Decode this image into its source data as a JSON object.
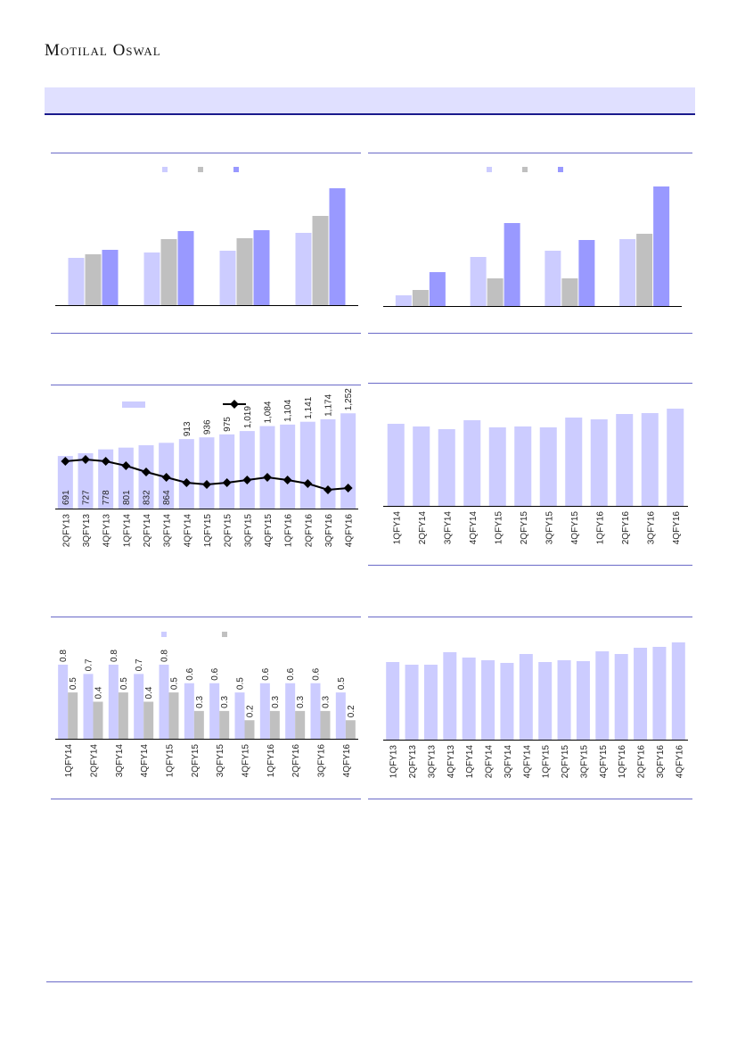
{
  "header": {
    "brand": "Motilal Oswal"
  },
  "colors": {
    "series_a": "#ccccff",
    "series_b": "#c0c0c0",
    "series_c": "#9999ff",
    "line": "#000000",
    "rule": "#6a6ac8",
    "banner": "#e0e0ff"
  },
  "chart_data": [
    {
      "type": "bar",
      "categories": [
        "",
        "",
        "",
        ""
      ],
      "series": [
        {
          "name": "",
          "values": [
            53,
            59,
            61,
            81
          ]
        },
        {
          "name": "",
          "values": [
            57,
            74,
            75,
            100
          ]
        },
        {
          "name": "",
          "values": [
            62,
            83,
            84,
            131
          ]
        }
      ],
      "ylim": [
        0,
        150
      ],
      "value_labels": false
    },
    {
      "type": "bar",
      "categories": [
        "",
        "",
        "",
        ""
      ],
      "series": [
        {
          "name": "",
          "values": [
            12,
            55,
            62,
            75
          ]
        },
        {
          "name": "",
          "values": [
            18,
            31,
            31,
            81
          ]
        },
        {
          "name": "",
          "values": [
            38,
            93,
            74,
            134
          ]
        }
      ],
      "ylim": [
        0,
        150
      ],
      "value_labels": false
    },
    {
      "type": "bar",
      "categories": [
        "2QFY13",
        "3QFY13",
        "4QFY13",
        "1QFY14",
        "2QFY14",
        "3QFY14",
        "4QFY14",
        "1QFY15",
        "2QFY15",
        "3QFY15",
        "4QFY15",
        "1QFY16",
        "2QFY16",
        "3QFY16",
        "4QFY16"
      ],
      "series": [
        {
          "name": "",
          "values": [
            691,
            727,
            778,
            801,
            832,
            864,
            913,
            936,
            975,
            1019,
            1084,
            1104,
            1141,
            1174,
            1252
          ],
          "labels": [
            "691",
            "727",
            "778",
            "801",
            "832",
            "864",
            "913",
            "936",
            "975",
            "1,019",
            "1,084",
            "1,104",
            "1,141",
            "1,174",
            "1,252"
          ]
        }
      ],
      "line_series": {
        "name": "",
        "values": [
          53,
          55,
          53,
          48,
          41,
          35,
          29,
          27,
          29,
          32,
          35,
          32,
          28,
          21,
          23
        ]
      },
      "ylim": [
        0,
        1630
      ],
      "value_labels": true
    },
    {
      "type": "bar",
      "categories": [
        "1QFY14",
        "2QFY14",
        "3QFY14",
        "4QFY14",
        "1QFY15",
        "2QFY15",
        "3QFY15",
        "4QFY15",
        "1QFY16",
        "2QFY16",
        "3QFY16",
        "4QFY16"
      ],
      "series": [
        {
          "name": "",
          "values": [
            92,
            89,
            86,
            96,
            88,
            89,
            88,
            99,
            97,
            103,
            104,
            109
          ]
        }
      ],
      "ylim": [
        0,
        137
      ],
      "value_labels": false
    },
    {
      "type": "bar",
      "categories": [
        "1QFY14",
        "2QFY14",
        "3QFY14",
        "4QFY14",
        "1QFY15",
        "2QFY15",
        "3QFY15",
        "4QFY15",
        "1QFY16",
        "2QFY16",
        "3QFY16",
        "4QFY16"
      ],
      "series": [
        {
          "name": "",
          "values": [
            0.8,
            0.7,
            0.8,
            0.7,
            0.8,
            0.6,
            0.6,
            0.5,
            0.6,
            0.6,
            0.6,
            0.5
          ],
          "labels": [
            "0.8",
            "0.7",
            "0.8",
            "0.7",
            "0.8",
            "0.6",
            "0.6",
            "0.5",
            "0.6",
            "0.6",
            "0.6",
            "0.5"
          ]
        },
        {
          "name": "",
          "values": [
            0.5,
            0.4,
            0.5,
            0.4,
            0.5,
            0.3,
            0.3,
            0.2,
            0.3,
            0.3,
            0.3,
            0.2
          ],
          "labels": [
            "0.5",
            "0.4",
            "0.5",
            "0.4",
            "0.5",
            "0.3",
            "0.3",
            "0.2",
            "0.3",
            "0.3",
            "0.3",
            "0.2"
          ]
        }
      ],
      "ylim": [
        0,
        1.32
      ],
      "value_labels": true
    },
    {
      "type": "bar",
      "categories": [
        "1QFY13",
        "2QFY13",
        "3QFY13",
        "4QFY13",
        "1QFY14",
        "2QFY14",
        "3QFY14",
        "4QFY14",
        "1QFY15",
        "2QFY15",
        "3QFY15",
        "4QFY15",
        "1QFY16",
        "2QFY16",
        "3QFY16",
        "4QFY16"
      ],
      "series": [
        {
          "name": "",
          "values": [
            87,
            84,
            84,
            98,
            92,
            89,
            86,
            96,
            87,
            89,
            88,
            99,
            96,
            103,
            104,
            109
          ]
        }
      ],
      "ylim": [
        0,
        140
      ],
      "value_labels": false
    }
  ]
}
